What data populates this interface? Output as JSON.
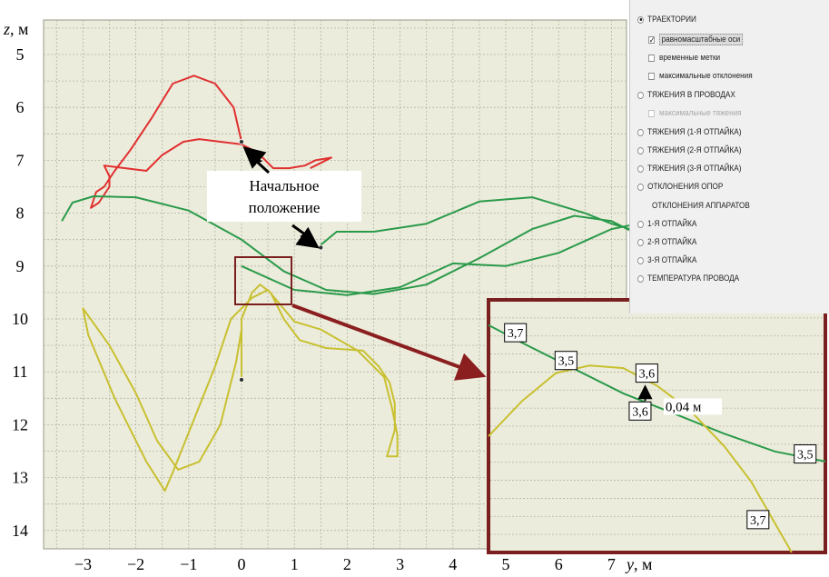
{
  "chart_data": {
    "type": "line",
    "xlabel": "y, м",
    "ylabel": "z, м",
    "xlim": [
      -3.9,
      8.0
    ],
    "ylim": [
      14.3,
      4.6
    ],
    "x_ticks": [
      "−3",
      "−2",
      "−1",
      "0",
      "1",
      "2",
      "3",
      "4",
      "5",
      "6",
      "7"
    ],
    "y_ticks": [
      "5",
      "6",
      "7",
      "8",
      "9",
      "10",
      "11",
      "12",
      "13",
      "14"
    ],
    "grid": true,
    "series": [
      {
        "color": "#e03030",
        "points": [
          [
            0.0,
            6.65
          ],
          [
            -0.15,
            6.0
          ],
          [
            -0.5,
            5.55
          ],
          [
            -0.9,
            5.4
          ],
          [
            -1.3,
            5.55
          ],
          [
            -1.7,
            6.2
          ],
          [
            -2.1,
            6.8
          ],
          [
            -2.4,
            7.2
          ],
          [
            -2.6,
            7.5
          ],
          [
            -2.75,
            7.6
          ],
          [
            -2.85,
            7.9
          ],
          [
            -2.7,
            7.8
          ],
          [
            -2.5,
            7.5
          ],
          [
            -2.5,
            7.3
          ],
          [
            -2.6,
            7.1
          ],
          [
            -2.2,
            7.15
          ],
          [
            -1.8,
            7.2
          ],
          [
            -1.5,
            6.9
          ],
          [
            -1.1,
            6.65
          ],
          [
            -0.8,
            6.6
          ],
          [
            -0.4,
            6.65
          ],
          [
            0.0,
            6.7
          ],
          [
            0.3,
            6.85
          ],
          [
            0.6,
            7.15
          ],
          [
            0.9,
            7.15
          ],
          [
            1.2,
            7.1
          ],
          [
            1.4,
            7.0
          ],
          [
            1.7,
            6.95
          ],
          [
            1.5,
            7.05
          ],
          [
            1.3,
            7.15
          ]
        ]
      },
      {
        "color": "#2a9a4a",
        "points": [
          [
            -3.4,
            8.15
          ],
          [
            -3.2,
            7.8
          ],
          [
            -2.8,
            7.68
          ],
          [
            -2.0,
            7.7
          ],
          [
            -1.0,
            7.95
          ],
          [
            0.0,
            8.5
          ],
          [
            0.8,
            9.1
          ],
          [
            1.6,
            9.45
          ],
          [
            2.5,
            9.53
          ],
          [
            3.5,
            9.35
          ],
          [
            4.5,
            8.85
          ],
          [
            5.5,
            8.3
          ],
          [
            6.3,
            8.05
          ],
          [
            7.0,
            8.15
          ],
          [
            7.6,
            8.45
          ],
          [
            7.35,
            8.3
          ],
          [
            7.0,
            8.2
          ],
          [
            6.5,
            8.0
          ],
          [
            5.5,
            7.7
          ],
          [
            4.5,
            7.78
          ],
          [
            3.5,
            8.2
          ],
          [
            2.5,
            8.35
          ],
          [
            1.8,
            8.35
          ],
          [
            1.5,
            8.6
          ]
        ]
      },
      {
        "color": "#2a9a4a",
        "points": [
          [
            0.0,
            9.0
          ],
          [
            1.0,
            9.45
          ],
          [
            2.0,
            9.55
          ],
          [
            3.0,
            9.4
          ],
          [
            4.0,
            8.95
          ],
          [
            5.0,
            9.0
          ],
          [
            6.0,
            8.75
          ],
          [
            7.0,
            8.3
          ],
          [
            7.5,
            8.2
          ]
        ]
      },
      {
        "color": "#c8c030",
        "points": [
          [
            0.0,
            11.15
          ],
          [
            0.0,
            10.0
          ],
          [
            0.2,
            9.5
          ],
          [
            0.35,
            9.35
          ],
          [
            0.55,
            9.5
          ],
          [
            0.8,
            10.0
          ],
          [
            1.1,
            10.4
          ],
          [
            1.6,
            10.55
          ],
          [
            2.3,
            10.6
          ],
          [
            2.6,
            10.9
          ],
          [
            2.8,
            11.2
          ],
          [
            2.9,
            11.6
          ],
          [
            2.9,
            12.1
          ],
          [
            2.75,
            12.6
          ],
          [
            2.95,
            12.6
          ],
          [
            2.95,
            12.2
          ],
          [
            2.85,
            11.7
          ],
          [
            2.7,
            11.1
          ],
          [
            2.2,
            10.6
          ],
          [
            1.5,
            10.2
          ],
          [
            1.0,
            10.05
          ],
          [
            0.5,
            9.45
          ],
          [
            0.2,
            9.6
          ],
          [
            -0.2,
            10.0
          ],
          [
            -0.5,
            10.9
          ],
          [
            -0.9,
            11.9
          ],
          [
            -1.3,
            12.9
          ],
          [
            -1.45,
            13.25
          ],
          [
            -1.8,
            12.7
          ],
          [
            -2.4,
            11.5
          ],
          [
            -2.9,
            10.3
          ],
          [
            -3.0,
            9.8
          ],
          [
            -2.5,
            10.5
          ],
          [
            -2.0,
            11.4
          ],
          [
            -1.6,
            12.3
          ],
          [
            -1.2,
            12.85
          ],
          [
            -0.8,
            12.7
          ],
          [
            -0.4,
            12.0
          ],
          [
            -0.1,
            10.8
          ],
          [
            0.0,
            10.2
          ]
        ]
      }
    ],
    "markers": [
      [
        0.0,
        6.65
      ],
      [
        1.5,
        8.65
      ],
      [
        0.0,
        11.15
      ]
    ],
    "annotation": {
      "line1": "Начальное",
      "line2": "положение"
    },
    "inset": {
      "labels": [
        {
          "text": "3,7",
          "xf": 0.08,
          "yf": 0.13
        },
        {
          "text": "3,5",
          "xf": 0.23,
          "yf": 0.24
        },
        {
          "text": "3,6",
          "xf": 0.47,
          "yf": 0.29
        },
        {
          "text": "3,6",
          "xf": 0.45,
          "yf": 0.44
        },
        {
          "text": "3,5",
          "xf": 0.94,
          "yf": 0.61
        },
        {
          "text": "3,7",
          "xf": 0.8,
          "yf": 0.87
        }
      ],
      "measure": "0,04 м"
    }
  },
  "panel": {
    "items": [
      {
        "type": "radio",
        "on": true,
        "label": "ТРАЕКТОРИИ"
      },
      {
        "type": "check",
        "on": true,
        "label": "равномасштабные оси",
        "selected": true
      },
      {
        "type": "check",
        "on": false,
        "label": "временные метки"
      },
      {
        "type": "check",
        "on": false,
        "label": "максимальные отклонения"
      },
      {
        "type": "radio",
        "on": false,
        "label": "ТЯЖЕНИЯ В ПРОВОДАХ"
      },
      {
        "type": "check",
        "on": false,
        "label": "максимальные тяжения",
        "disabled": true
      },
      {
        "type": "radio",
        "on": false,
        "label": "ТЯЖЕНИЯ (1-Я ОТПАЙКА)"
      },
      {
        "type": "radio",
        "on": false,
        "label": "ТЯЖЕНИЯ (2-Я ОТПАЙКА)"
      },
      {
        "type": "radio",
        "on": false,
        "label": "ТЯЖЕНИЯ (3-Я ОТПАЙКА)"
      },
      {
        "type": "radio",
        "on": false,
        "label": "ОТКЛОНЕНИЯ ОПОР"
      },
      {
        "type": "plain",
        "label": "ОТКЛОНЕНИЯ АППАРАТОВ"
      },
      {
        "type": "radio",
        "on": false,
        "label": "1-Я ОТПАЙКА"
      },
      {
        "type": "radio",
        "on": false,
        "label": "2-Я ОТПАЙКА"
      },
      {
        "type": "radio",
        "on": false,
        "label": "3-Я ОТПАЙКА"
      },
      {
        "type": "radio",
        "on": false,
        "label": "ТЕМПЕРАТУРА ПРОВОДА"
      }
    ]
  },
  "colors": {
    "plot_bg": "#ececdc",
    "grid": "#b4b4a4",
    "zoom_border": "#7a1f1f",
    "arrow": "#8b1f1f"
  }
}
